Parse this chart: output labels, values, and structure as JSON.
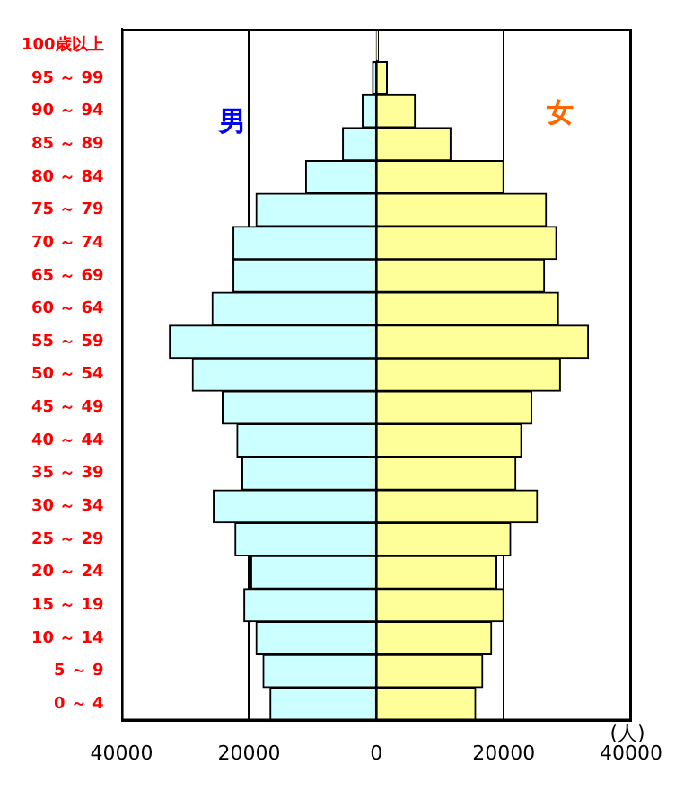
{
  "chart_data": {
    "type": "bar",
    "orientation": "horizontal",
    "stacked": true,
    "xlabel": "(人)",
    "categories": [
      "100歳以上",
      "95 ～ 99",
      "90 ～ 94",
      "85 ～ 89",
      "80 ～ 84",
      "75 ～ 79",
      "70 ～ 74",
      "65 ～ 69",
      "60 ～ 64",
      "55 ～ 59",
      "50 ～ 54",
      "45 ～ 49",
      "40 ～ 44",
      "35 ～ 39",
      "30 ～ 34",
      "25 ～ 29",
      "20 ～ 24",
      "15 ～ 19",
      "10 ～ 14",
      "5 ～ 9",
      "0 ～ 4"
    ],
    "series": [
      {
        "name": "男",
        "color": "#ccffff",
        "values": [
          null,
          -600,
          -2200,
          -5300,
          -11100,
          -18900,
          -22500,
          -22500,
          -25800,
          -32500,
          -28900,
          -24200,
          -21900,
          -21100,
          -25600,
          -22200,
          -19700,
          -20800,
          -18900,
          -17800,
          -16700
        ]
      },
      {
        "name": "女",
        "color": "#ffff99",
        "values": [
          300,
          1700,
          6100,
          11700,
          20000,
          26700,
          28300,
          26400,
          28600,
          33300,
          28900,
          24400,
          22800,
          21900,
          25300,
          21100,
          18900,
          20000,
          18100,
          16700,
          15600
        ]
      }
    ],
    "xlim": [
      -40000,
      40000
    ],
    "xticks": [
      {
        "value": -40000,
        "label": "40000"
      },
      {
        "value": -20000,
        "label": "20000"
      },
      0,
      20000,
      40000
    ],
    "grid": "x",
    "legend": false
  }
}
